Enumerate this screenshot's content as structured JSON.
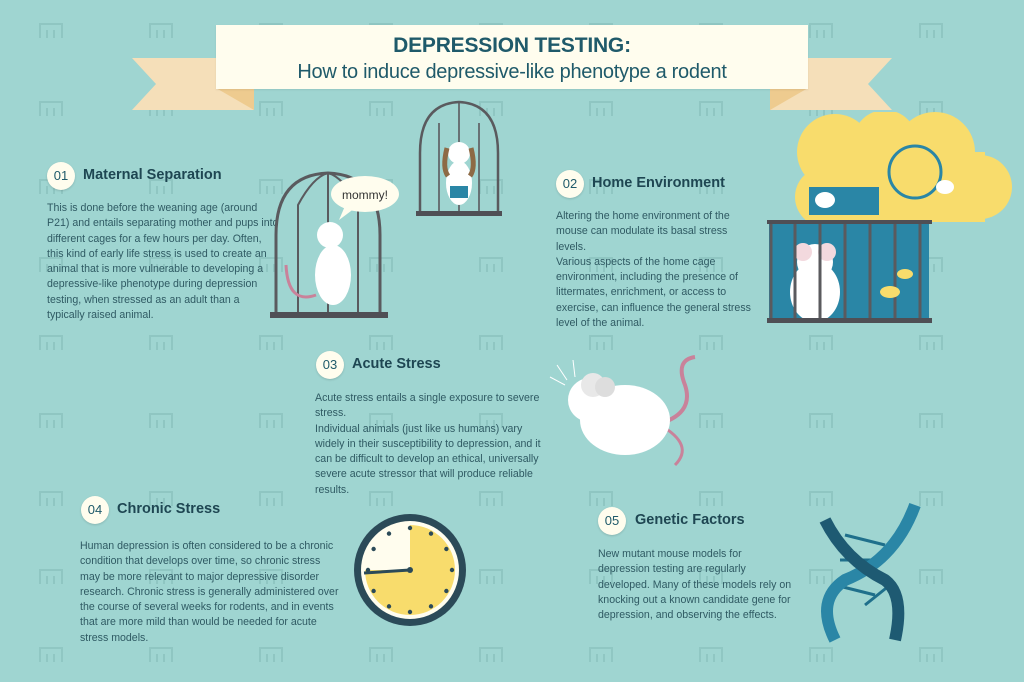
{
  "banner": {
    "title": "DEPRESSION TESTING:",
    "subtitle": "How to induce depressive-like phenotype a rodent"
  },
  "colors": {
    "background": "#9fd5d1",
    "banner": "#fffdee",
    "ribbon": "#f5dfb9",
    "heading": "#1e4652",
    "accent_blue": "#2a86a6",
    "accent_yellow": "#f8dc6c",
    "mouse_tail": "#c9829a"
  },
  "sections": [
    {
      "number": "01",
      "title": "Maternal Separation",
      "body": "This is done before the weaning age (around P21) and entails separating mother and pups into different cages for a few hours per day. Often, this kind of early life stress is used to create an animal that is more vulnerable to developing a depressive-like phenotype during depression testing, when stressed as an adult than a typically raised animal."
    },
    {
      "number": "02",
      "title": "Home Environment",
      "body": "Altering the home environment of the mouse can modulate its basal stress levels.\nVarious aspects of the home cage environment, including the presence of littermates, enrichment, or access to exercise, can influence the general stress level of the animal."
    },
    {
      "number": "03",
      "title": "Acute Stress",
      "body": "Acute stress entails a single exposure to severe stress.\nIndividual animals (just like us humans) vary widely in their susceptibility to depression, and it can be difficult to develop an ethical, universally severe acute stressor that will produce reliable results."
    },
    {
      "number": "04",
      "title": "Chronic Stress",
      "body": "Human depression is often considered to be a chronic condition that develops over time, so chronic stress may be more relevant to major depressive disorder research. Chronic stress is generally administered over the course of several weeks for rodents, and in events that are more mild than would be needed for acute stress models."
    },
    {
      "number": "05",
      "title": "Genetic Factors",
      "body": "New mutant mouse models for depression testing are regularly developed. Many of these models rely on knocking out a known candidate gene for depression, and observing the effects."
    }
  ],
  "illustrations": {
    "speech_bubble": "mommy!",
    "clock_fraction_filled": 0.75
  }
}
